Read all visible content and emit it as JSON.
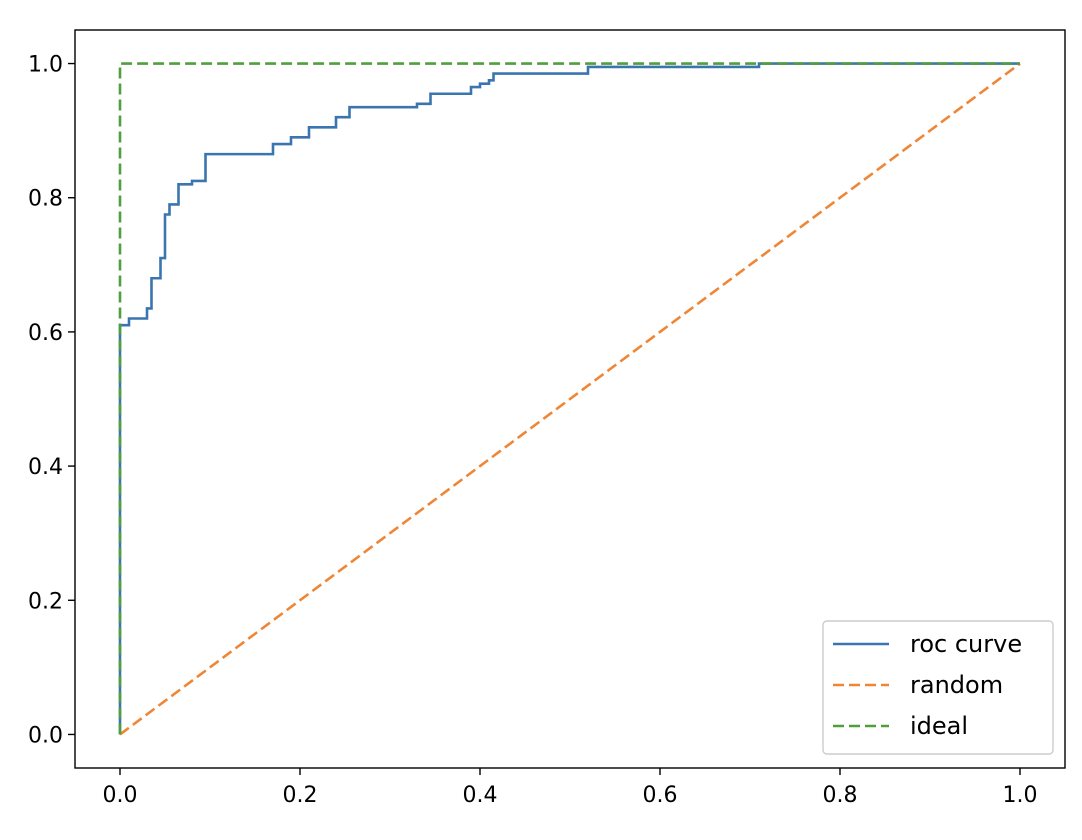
{
  "chart_data": {
    "type": "line",
    "title": "",
    "xlabel": "",
    "ylabel": "",
    "xlim": [
      -0.05,
      1.05
    ],
    "ylim": [
      -0.05,
      1.05
    ],
    "grid": false,
    "legend_position": "lower-right",
    "x_ticks": [
      {
        "value": 0.0,
        "label": "0.0"
      },
      {
        "value": 0.2,
        "label": "0.2"
      },
      {
        "value": 0.4,
        "label": "0.4"
      },
      {
        "value": 0.6,
        "label": "0.6"
      },
      {
        "value": 0.8,
        "label": "0.8"
      },
      {
        "value": 1.0,
        "label": "1.0"
      }
    ],
    "y_ticks": [
      {
        "value": 0.0,
        "label": "0.0"
      },
      {
        "value": 0.2,
        "label": "0.2"
      },
      {
        "value": 0.4,
        "label": "0.4"
      },
      {
        "value": 0.6,
        "label": "0.6"
      },
      {
        "value": 0.8,
        "label": "0.8"
      },
      {
        "value": 1.0,
        "label": "1.0"
      }
    ],
    "series": [
      {
        "name": "roc curve",
        "color": "#3b75af",
        "dash": "solid",
        "x": [
          0.0,
          0.0,
          0.0,
          0.0,
          0.01,
          0.01,
          0.02,
          0.02,
          0.03,
          0.03,
          0.035,
          0.035,
          0.045,
          0.045,
          0.05,
          0.05,
          0.055,
          0.055,
          0.065,
          0.065,
          0.08,
          0.08,
          0.095,
          0.095,
          0.11,
          0.11,
          0.17,
          0.17,
          0.175,
          0.175,
          0.19,
          0.19,
          0.21,
          0.21,
          0.24,
          0.24,
          0.255,
          0.255,
          0.33,
          0.33,
          0.345,
          0.345,
          0.39,
          0.39,
          0.4,
          0.4,
          0.41,
          0.41,
          0.415,
          0.415,
          0.52,
          0.52,
          0.71,
          0.71,
          1.0
        ],
        "y": [
          0.0,
          0.61,
          0.61,
          0.61,
          0.61,
          0.62,
          0.62,
          0.62,
          0.62,
          0.635,
          0.635,
          0.68,
          0.68,
          0.71,
          0.71,
          0.775,
          0.775,
          0.79,
          0.79,
          0.82,
          0.82,
          0.825,
          0.825,
          0.865,
          0.865,
          0.865,
          0.865,
          0.88,
          0.88,
          0.88,
          0.88,
          0.89,
          0.89,
          0.905,
          0.905,
          0.92,
          0.92,
          0.935,
          0.935,
          0.94,
          0.94,
          0.955,
          0.955,
          0.965,
          0.965,
          0.97,
          0.97,
          0.975,
          0.975,
          0.985,
          0.985,
          0.995,
          0.995,
          1.0,
          1.0
        ]
      },
      {
        "name": "random",
        "color": "#ef8636",
        "dash": "dashed",
        "x": [
          0.0,
          1.0
        ],
        "y": [
          0.0,
          1.0
        ]
      },
      {
        "name": "ideal",
        "color": "#519e3e",
        "dash": "dashed",
        "x": [
          0.0,
          0.0,
          1.0
        ],
        "y": [
          0.0,
          1.0,
          1.0
        ]
      }
    ]
  }
}
